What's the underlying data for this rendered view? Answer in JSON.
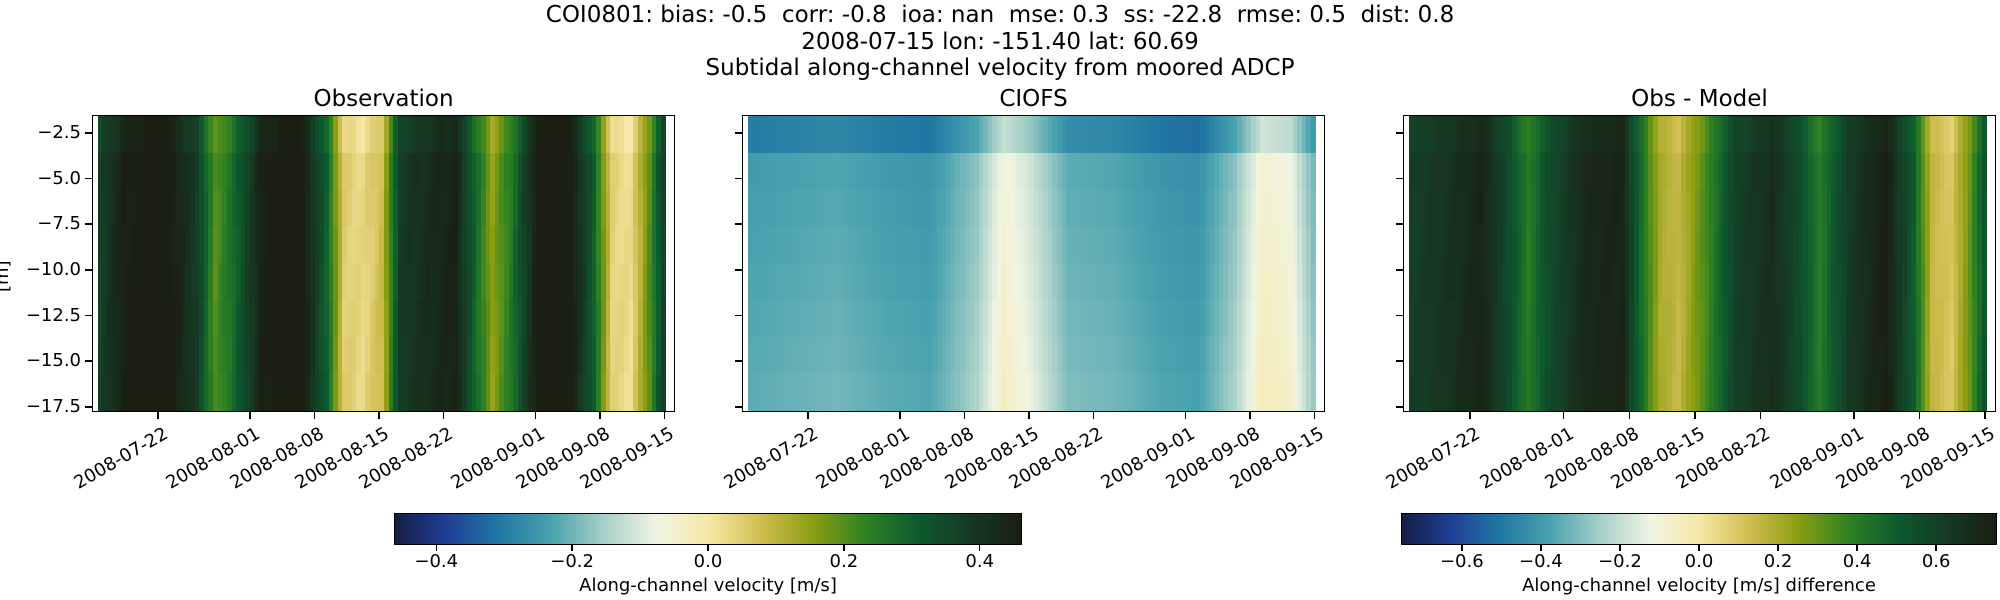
{
  "header": {
    "line1": "COI0801: bias: -0.5  corr: -0.8  ioa: nan  mse: 0.3  ss: -22.8  rmse: 0.5  dist: 0.8",
    "line2": "2008-07-15 lon: -151.40 lat: 60.69",
    "line3": "Subtidal along-channel velocity from moored ADCP"
  },
  "chart_data": [
    {
      "type": "heatmap",
      "title": "Observation",
      "ylabel": "[m]",
      "ylim": [
        -17.7,
        -1.6
      ],
      "yticks": [
        "-2.5",
        "-5.0",
        "-7.5",
        "-10.0",
        "-12.5",
        "-15.0",
        "-17.5"
      ],
      "xlim": [
        "2008-07-15",
        "2008-09-16"
      ],
      "xticks": [
        "2008-07-22",
        "2008-08-01",
        "2008-08-08",
        "2008-08-15",
        "2008-08-22",
        "2008-09-01",
        "2008-09-08",
        "2008-09-15"
      ],
      "colorbar": "velocity",
      "time_profile": [
        {
          "date": "2008-07-15",
          "value": 0.35
        },
        {
          "date": "2008-07-18",
          "value": 0.45
        },
        {
          "date": "2008-07-22",
          "value": 0.5
        },
        {
          "date": "2008-07-26",
          "value": 0.38
        },
        {
          "date": "2008-07-28",
          "value": 0.2
        },
        {
          "date": "2008-07-30",
          "value": 0.28
        },
        {
          "date": "2008-08-02",
          "value": 0.45
        },
        {
          "date": "2008-08-06",
          "value": 0.5
        },
        {
          "date": "2008-08-09",
          "value": 0.3
        },
        {
          "date": "2008-08-11",
          "value": 0.05
        },
        {
          "date": "2008-08-13",
          "value": 0.03
        },
        {
          "date": "2008-08-15",
          "value": 0.08
        },
        {
          "date": "2008-08-17",
          "value": 0.38
        },
        {
          "date": "2008-08-20",
          "value": 0.42
        },
        {
          "date": "2008-08-23",
          "value": 0.45
        },
        {
          "date": "2008-08-25",
          "value": 0.3
        },
        {
          "date": "2008-08-27",
          "value": 0.15
        },
        {
          "date": "2008-08-29",
          "value": 0.25
        },
        {
          "date": "2008-09-01",
          "value": 0.48
        },
        {
          "date": "2008-09-04",
          "value": 0.5
        },
        {
          "date": "2008-09-07",
          "value": 0.3
        },
        {
          "date": "2008-09-09",
          "value": 0.04
        },
        {
          "date": "2008-09-11",
          "value": 0.02
        },
        {
          "date": "2008-09-13",
          "value": 0.2
        },
        {
          "date": "2008-09-15",
          "value": 0.42
        }
      ]
    },
    {
      "type": "heatmap",
      "title": "CIOFS",
      "ylim": [
        -17.7,
        -1.6
      ],
      "xlim": [
        "2008-07-15",
        "2008-09-16"
      ],
      "xticks": [
        "2008-07-22",
        "2008-08-01",
        "2008-08-08",
        "2008-08-15",
        "2008-08-22",
        "2008-09-01",
        "2008-09-08",
        "2008-09-15"
      ],
      "colorbar": "velocity",
      "time_profile": [
        {
          "date": "2008-07-15",
          "value": -0.25
        },
        {
          "date": "2008-07-20",
          "value": -0.24
        },
        {
          "date": "2008-07-25",
          "value": -0.23
        },
        {
          "date": "2008-07-30",
          "value": -0.25
        },
        {
          "date": "2008-08-04",
          "value": -0.26
        },
        {
          "date": "2008-08-09",
          "value": -0.18
        },
        {
          "date": "2008-08-12",
          "value": -0.07
        },
        {
          "date": "2008-08-15",
          "value": -0.12
        },
        {
          "date": "2008-08-19",
          "value": -0.22
        },
        {
          "date": "2008-08-24",
          "value": -0.23
        },
        {
          "date": "2008-08-29",
          "value": -0.26
        },
        {
          "date": "2008-09-02",
          "value": -0.27
        },
        {
          "date": "2008-09-06",
          "value": -0.18
        },
        {
          "date": "2008-09-09",
          "value": -0.06
        },
        {
          "date": "2008-09-12",
          "value": -0.08
        },
        {
          "date": "2008-09-15",
          "value": -0.22
        }
      ]
    },
    {
      "type": "heatmap",
      "title": "Obs - Model",
      "ylim": [
        -17.7,
        -1.6
      ],
      "xlim": [
        "2008-07-15",
        "2008-09-16"
      ],
      "xticks": [
        "2008-07-22",
        "2008-08-01",
        "2008-08-08",
        "2008-08-15",
        "2008-08-22",
        "2008-09-01",
        "2008-09-08",
        "2008-09-15"
      ],
      "colorbar": "difference",
      "time_profile": [
        {
          "date": "2008-07-15",
          "value": 0.6
        },
        {
          "date": "2008-07-19",
          "value": 0.65
        },
        {
          "date": "2008-07-23",
          "value": 0.72
        },
        {
          "date": "2008-07-26",
          "value": 0.55
        },
        {
          "date": "2008-07-28",
          "value": 0.4
        },
        {
          "date": "2008-07-30",
          "value": 0.55
        },
        {
          "date": "2008-08-03",
          "value": 0.7
        },
        {
          "date": "2008-08-07",
          "value": 0.72
        },
        {
          "date": "2008-08-09",
          "value": 0.45
        },
        {
          "date": "2008-08-11",
          "value": 0.2
        },
        {
          "date": "2008-08-13",
          "value": 0.15
        },
        {
          "date": "2008-08-16",
          "value": 0.35
        },
        {
          "date": "2008-08-19",
          "value": 0.6
        },
        {
          "date": "2008-08-23",
          "value": 0.68
        },
        {
          "date": "2008-08-26",
          "value": 0.55
        },
        {
          "date": "2008-08-28",
          "value": 0.4
        },
        {
          "date": "2008-08-31",
          "value": 0.62
        },
        {
          "date": "2008-09-04",
          "value": 0.75
        },
        {
          "date": "2008-09-07",
          "value": 0.5
        },
        {
          "date": "2008-09-09",
          "value": 0.15
        },
        {
          "date": "2008-09-11",
          "value": 0.1
        },
        {
          "date": "2008-09-13",
          "value": 0.3
        },
        {
          "date": "2008-09-15",
          "value": 0.6
        }
      ]
    }
  ],
  "colorbars": {
    "velocity": {
      "label": "Along-channel velocity [m/s]",
      "range": [
        -0.46,
        0.46
      ],
      "ticks": [
        "-0.4",
        "-0.2",
        "0.0",
        "0.2",
        "0.4"
      ]
    },
    "difference": {
      "label": "Along-channel velocity [m/s] difference",
      "range": [
        -0.75,
        0.75
      ],
      "ticks": [
        "-0.6",
        "-0.4",
        "-0.2",
        "0.0",
        "0.2",
        "0.4",
        "0.6"
      ]
    }
  },
  "depth_rows": 8,
  "colormap_stops": [
    "#151d44",
    "#1f3f96",
    "#2178a3",
    "#4aa3ae",
    "#a6cfc8",
    "#f0f4e3",
    "#f6e9a6",
    "#d1be52",
    "#8c9e12",
    "#2f8223",
    "#0d5b2f",
    "#163a24",
    "#1a1e13"
  ]
}
